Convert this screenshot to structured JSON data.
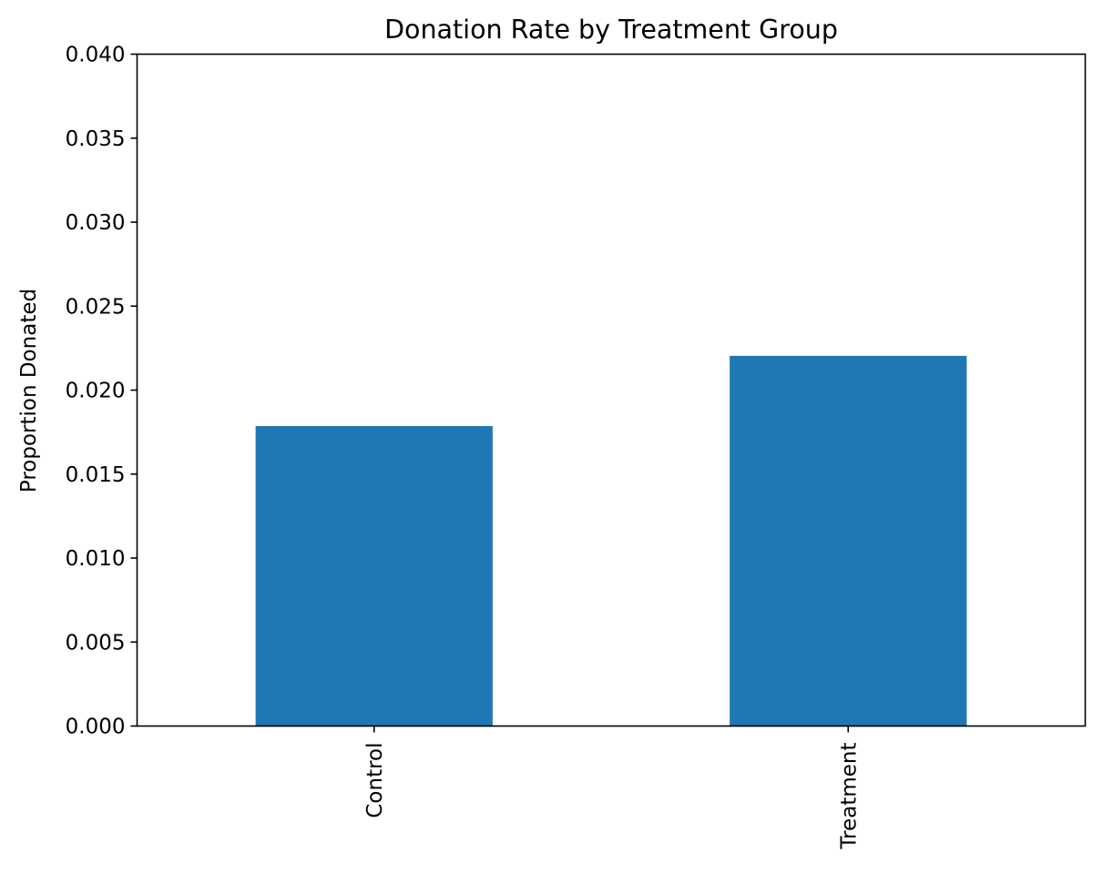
{
  "chart_data": {
    "type": "bar",
    "title": "Donation Rate by Treatment Group",
    "xlabel": "",
    "ylabel": "Proportion Donated",
    "categories": [
      "Control",
      "Treatment"
    ],
    "values": [
      0.01786,
      0.02204
    ],
    "ylim": [
      0,
      0.04
    ],
    "yticks": [
      0.0,
      0.005,
      0.01,
      0.015,
      0.02,
      0.025,
      0.03,
      0.035,
      0.04
    ],
    "ytick_labels": [
      "0.000",
      "0.005",
      "0.010",
      "0.015",
      "0.020",
      "0.025",
      "0.030",
      "0.035",
      "0.040"
    ],
    "bar_color": "#1f77b4",
    "grid": false,
    "legend": "none",
    "xtick_rotation": "vertical"
  }
}
